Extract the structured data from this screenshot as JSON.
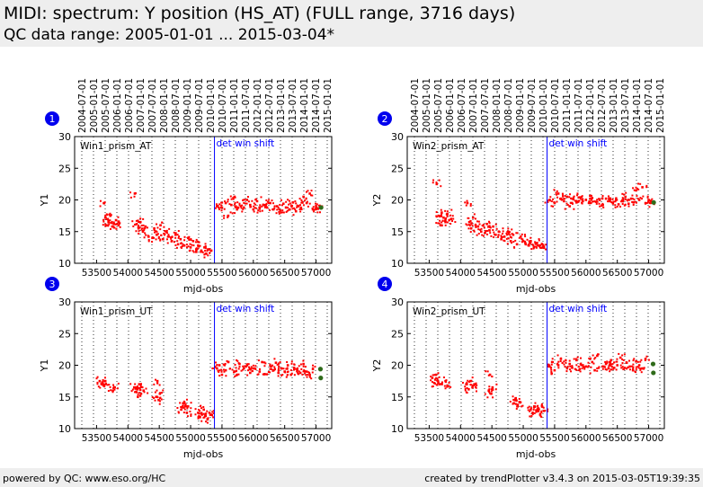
{
  "header": {
    "title": "MIDI: spectrum: Y position (HS_AT) (FULL range, 3716 days)",
    "subtitle": "QC data range: 2005-01-01 ... 2015-03-04*"
  },
  "footer": {
    "left": "powered by QC: www.eso.org/HC",
    "right": "created by trendPlotter v3.4.3 on 2015-03-05T19:39:35"
  },
  "colors": {
    "data": "#ff0000",
    "marker_line": "#0000ff",
    "latest": "#2f6b1a",
    "badge": "#0000ee",
    "header_bg": "#eeeeee"
  },
  "chart_data": [
    {
      "type": "scatter",
      "badge": "1",
      "panel_label": "Win1_prism_AT",
      "annotation": "det win shift",
      "marker_x": 55380,
      "xlabel": "mjd-obs",
      "ylabel": "Y1",
      "xlim": [
        53150,
        57250
      ],
      "ylim": [
        10,
        30
      ],
      "xticks": [
        53500,
        54000,
        54500,
        55000,
        55500,
        56000,
        56500,
        57000
      ],
      "yticks": [
        10,
        15,
        20,
        25,
        30
      ],
      "date_ticks": [
        "2004-07-01",
        "2005-01-01",
        "2005-07-01",
        "2006-01-01",
        "2006-07-01",
        "2007-01-01",
        "2007-07-01",
        "2008-01-01",
        "2008-07-01",
        "2009-01-01",
        "2009-07-01",
        "2010-01-01",
        "2010-07-01",
        "2011-01-01",
        "2011-07-01",
        "2012-01-01",
        "2012-07-01",
        "2013-01-01",
        "2013-07-01",
        "2014-01-01",
        "2014-07-01",
        "2015-01-01"
      ],
      "series": [
        {
          "x": [
            53620,
            53640,
            53660,
            53690,
            53720,
            53750,
            53780,
            53810,
            53850,
            54110,
            54140,
            54170,
            54200,
            54240,
            54280,
            54330,
            54390,
            54420,
            54460,
            54520,
            54560,
            54610,
            54650,
            54700,
            54760,
            54800,
            54840,
            54900,
            54960,
            55000,
            55040,
            55090,
            55120,
            55170,
            55220,
            55250,
            55300,
            55330
          ],
          "y": [
            19.5,
            17.2,
            16.0,
            16.5,
            17.5,
            15.8,
            16.2,
            16.8,
            16.0,
            21.0,
            16.2,
            15.5,
            16.5,
            15.0,
            15.8,
            14.2,
            14.0,
            15.5,
            14.5,
            16.0,
            13.8,
            15.0,
            14.2,
            13.5,
            14.5,
            13.0,
            13.8,
            12.8,
            14.0,
            12.5,
            13.5,
            11.8,
            12.8,
            12.0,
            12.5,
            11.5,
            12.2,
            12.0
          ]
        },
        {
          "x": [
            55420,
            55500,
            55560,
            55600,
            55650,
            55700,
            55740,
            55800,
            55850,
            55900,
            55950,
            56000,
            56060,
            56100,
            56160,
            56220,
            56270,
            56320,
            56380,
            56430,
            56480,
            56520,
            56580,
            56630,
            56680,
            56720,
            56760,
            56800,
            56850,
            56900,
            56950,
            57000,
            57030
          ],
          "y": [
            19.0,
            18.8,
            19.5,
            17.5,
            19.2,
            20.5,
            18.5,
            19.0,
            18.8,
            20.0,
            19.2,
            18.5,
            19.8,
            18.6,
            19.2,
            18.8,
            19.5,
            18.5,
            19.0,
            18.3,
            19.4,
            18.8,
            18.5,
            19.6,
            18.2,
            19.0,
            18.7,
            20.5,
            19.5,
            21.0,
            18.5,
            19.0,
            18.6
          ]
        }
      ],
      "latest": {
        "x": [
          57080
        ],
        "y": [
          18.8
        ]
      }
    },
    {
      "type": "scatter",
      "badge": "2",
      "panel_label": "Win2_prism_AT",
      "annotation": "det win shift",
      "marker_x": 55380,
      "xlabel": "mjd-obs",
      "ylabel": "Y2",
      "xlim": [
        53150,
        57250
      ],
      "ylim": [
        10,
        30
      ],
      "xticks": [
        53500,
        54000,
        54500,
        55000,
        55500,
        56000,
        56500,
        57000
      ],
      "yticks": [
        10,
        15,
        20,
        25,
        30
      ],
      "date_ticks": [
        "2004-07-01",
        "2005-01-01",
        "2005-07-01",
        "2006-01-01",
        "2006-07-01",
        "2007-01-01",
        "2007-07-01",
        "2008-01-01",
        "2008-07-01",
        "2009-01-01",
        "2009-07-01",
        "2010-01-01",
        "2010-07-01",
        "2011-01-01",
        "2011-07-01",
        "2012-01-01",
        "2012-07-01",
        "2013-01-01",
        "2013-07-01",
        "2014-01-01",
        "2014-07-01",
        "2015-01-01"
      ],
      "series": [
        {
          "x": [
            53620,
            53650,
            53680,
            53700,
            53730,
            53760,
            53790,
            53820,
            53850,
            54110,
            54140,
            54170,
            54200,
            54240,
            54280,
            54330,
            54390,
            54420,
            54460,
            54520,
            54560,
            54610,
            54650,
            54700,
            54760,
            54800,
            54840,
            54900,
            54960,
            55000,
            55040,
            55090,
            55120,
            55170,
            55220,
            55250,
            55300,
            55330
          ],
          "y": [
            22.5,
            17.5,
            16.0,
            18.0,
            17.2,
            16.5,
            17.8,
            16.8,
            17.0,
            19.5,
            16.5,
            15.5,
            17.2,
            16.0,
            15.8,
            15.0,
            14.8,
            16.2,
            15.2,
            15.8,
            14.5,
            15.0,
            13.8,
            14.2,
            15.0,
            13.5,
            14.5,
            13.0,
            14.2,
            13.5,
            13.0,
            12.8,
            13.5,
            12.5,
            13.2,
            12.8,
            13.0,
            12.6
          ]
        },
        {
          "x": [
            55420,
            55500,
            55560,
            55600,
            55650,
            55700,
            55740,
            55800,
            55850,
            55900,
            55950,
            56000,
            56060,
            56100,
            56160,
            56220,
            56270,
            56320,
            56380,
            56430,
            56480,
            56520,
            56580,
            56630,
            56680,
            56720,
            56760,
            56800,
            56850,
            56900,
            56950,
            57000,
            57030
          ],
          "y": [
            20.0,
            19.5,
            21.0,
            20.2,
            19.8,
            20.5,
            19.0,
            20.1,
            19.6,
            20.4,
            19.8,
            20.0,
            19.5,
            20.3,
            19.7,
            20.0,
            19.2,
            20.2,
            19.8,
            19.5,
            20.0,
            19.3,
            19.8,
            20.5,
            19.4,
            20.2,
            19.6,
            21.5,
            20.0,
            22.0,
            19.5,
            20.0,
            19.8
          ]
        }
      ],
      "latest": {
        "x": [
          57080
        ],
        "y": [
          19.6
        ]
      }
    },
    {
      "type": "scatter",
      "badge": "3",
      "panel_label": "Win1_prism_UT",
      "annotation": "det win shift",
      "marker_x": 55380,
      "xlabel": "mjd-obs",
      "ylabel": "Y1",
      "xlim": [
        53150,
        57250
      ],
      "ylim": [
        10,
        30
      ],
      "xticks": [
        53500,
        54000,
        54500,
        55000,
        55500,
        56000,
        56500,
        57000
      ],
      "yticks": [
        10,
        15,
        20,
        25,
        30
      ],
      "date_ticks": [],
      "series": [
        {
          "x": [
            53550,
            53580,
            53610,
            53640,
            53760,
            53790,
            54100,
            54130,
            54150,
            54180,
            54210,
            54250,
            54450,
            54470,
            54490,
            54510,
            54850,
            54880,
            54910,
            54940,
            54960,
            55120,
            55150,
            55180,
            55210,
            55240,
            55270,
            55300,
            55330
          ],
          "y": [
            17.5,
            17.0,
            16.8,
            17.5,
            16.0,
            16.5,
            16.5,
            15.8,
            16.2,
            17.0,
            15.5,
            16.0,
            15.0,
            17.5,
            14.5,
            15.5,
            13.0,
            14.0,
            13.5,
            12.5,
            13.5,
            12.5,
            11.8,
            12.2,
            13.0,
            12.0,
            11.5,
            12.5,
            12.2
          ]
        },
        {
          "x": [
            55420,
            55460,
            55500,
            55560,
            55600,
            55700,
            55740,
            55780,
            55850,
            55900,
            55950,
            56000,
            56100,
            56140,
            56180,
            56280,
            56320,
            56360,
            56400,
            56450,
            56500,
            56550,
            56600,
            56650,
            56700,
            56750,
            56800,
            56850,
            56900,
            56950
          ],
          "y": [
            19.5,
            20.0,
            18.5,
            19.2,
            20.5,
            19.0,
            18.5,
            20.2,
            19.5,
            20.0,
            18.8,
            19.5,
            19.0,
            20.5,
            18.6,
            19.8,
            19.2,
            20.4,
            18.8,
            19.5,
            19.0,
            20.0,
            18.5,
            19.6,
            19.2,
            18.8,
            20.2,
            19.0,
            18.5,
            19.4
          ]
        }
      ],
      "latest": {
        "x": [
          57070,
          57075
        ],
        "y": [
          19.4,
          18.0
        ]
      }
    },
    {
      "type": "scatter",
      "badge": "4",
      "panel_label": "Win2_prism_UT",
      "annotation": "det win shift",
      "marker_x": 55380,
      "xlabel": "mjd-obs",
      "ylabel": "Y2",
      "xlim": [
        53150,
        57250
      ],
      "ylim": [
        10,
        30
      ],
      "xticks": [
        53500,
        54000,
        54500,
        55000,
        55500,
        56000,
        56500,
        57000
      ],
      "yticks": [
        10,
        15,
        20,
        25,
        30
      ],
      "date_ticks": [],
      "series": [
        {
          "x": [
            53550,
            53580,
            53610,
            53640,
            53670,
            53760,
            53790,
            54100,
            54130,
            54160,
            54190,
            54220,
            54450,
            54470,
            54490,
            54510,
            54850,
            54880,
            54910,
            54940,
            55120,
            55150,
            55180,
            55210,
            55240,
            55270,
            55300,
            55330
          ],
          "y": [
            18.0,
            17.2,
            18.5,
            17.5,
            17.0,
            17.5,
            16.8,
            17.0,
            16.2,
            17.5,
            16.5,
            17.0,
            16.0,
            18.5,
            15.5,
            16.5,
            14.0,
            14.8,
            13.5,
            14.2,
            13.0,
            12.5,
            13.5,
            12.8,
            13.2,
            12.2,
            13.5,
            12.8
          ]
        },
        {
          "x": [
            55420,
            55460,
            55500,
            55560,
            55600,
            55700,
            55740,
            55780,
            55850,
            55900,
            55950,
            56000,
            56100,
            56140,
            56180,
            56280,
            56320,
            56360,
            56400,
            56450,
            56500,
            56550,
            56600,
            56650,
            56700,
            56750,
            56800,
            56850,
            56900,
            56950
          ],
          "y": [
            19.8,
            20.5,
            19.2,
            20.0,
            21.0,
            19.5,
            20.2,
            19.6,
            20.8,
            19.4,
            20.0,
            19.8,
            20.5,
            19.2,
            21.5,
            19.8,
            20.2,
            19.5,
            20.8,
            19.6,
            20.0,
            21.2,
            19.4,
            20.4,
            19.8,
            19.2,
            20.6,
            20.0,
            19.5,
            21.0
          ]
        }
      ],
      "latest": {
        "x": [
          57070,
          57075
        ],
        "y": [
          20.2,
          18.8
        ]
      }
    }
  ]
}
